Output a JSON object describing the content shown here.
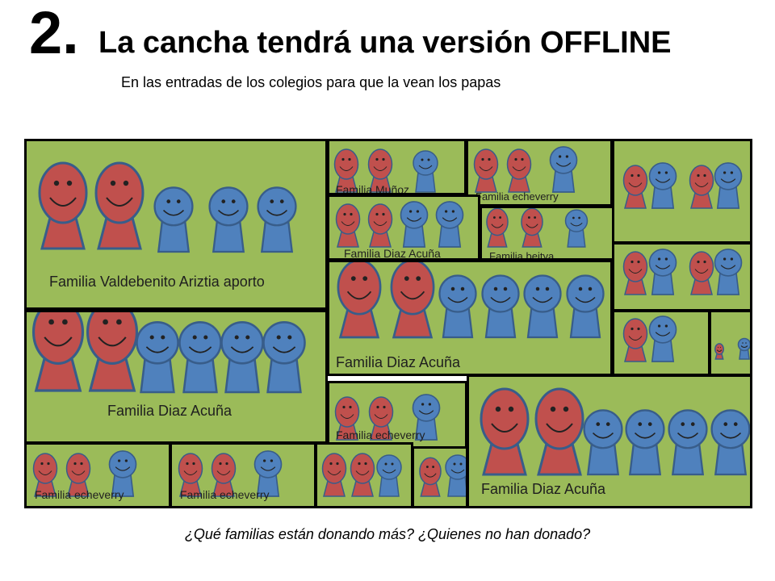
{
  "slide": {
    "number": "2.",
    "title": "La cancha tendrá una versión OFFLINE",
    "subtitle": "En las entradas de los colegios para que la vean los papas",
    "question": "¿Qué familias están donando más? ¿Quienes no han donado?"
  },
  "colors": {
    "field": "#9bbb59",
    "parent": "#c0504d",
    "child": "#4f81bd",
    "outline": "#385d8a",
    "border": "#000000"
  },
  "families": [
    {
      "label": "Familia Valdebenito Ariztia aporto"
    },
    {
      "label": "Familia Diaz Acuña"
    },
    {
      "label": "Familia Muñoz"
    },
    {
      "label": "Familia echeverry"
    },
    {
      "label": "Familia Diaz Acuña"
    },
    {
      "label": "Familia beitya"
    },
    {
      "label": "Familia Diaz Acuña"
    },
    {
      "label": "Familia echeverry"
    },
    {
      "label": "Familia Diaz Acuña"
    },
    {
      "label": "Familia echeverry"
    },
    {
      "label": "Familia echeverry"
    },
    {
      "label": ""
    },
    {
      "label": ""
    },
    {
      "label": ""
    },
    {
      "label": ""
    },
    {
      "label": ""
    },
    {
      "label": ""
    }
  ]
}
